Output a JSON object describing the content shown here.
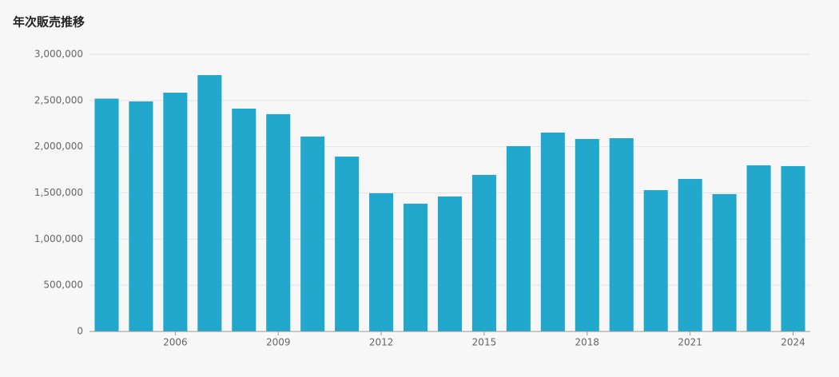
{
  "chart_data": {
    "type": "bar",
    "title": "年次販売推移",
    "categories": [
      null,
      null,
      "2006",
      null,
      null,
      "2009",
      null,
      null,
      "2012",
      null,
      null,
      "2015",
      null,
      null,
      "2018",
      null,
      null,
      "2021",
      null,
      null,
      "2024"
    ],
    "values": [
      2520000,
      2490000,
      2585000,
      2775000,
      2412000,
      2352000,
      2110000,
      1893000,
      1496000,
      1383000,
      1461000,
      1695000,
      2006000,
      2153000,
      2084000,
      2092000,
      1530000,
      1651000,
      1487000,
      1798000,
      1790000
    ],
    "color": "#21a8cc",
    "ylim": [
      0,
      3000000
    ],
    "yticks": [
      0,
      {
        "value": 500000,
        "label": "500,000"
      },
      {
        "value": 1000000,
        "label": "1,000,000"
      },
      {
        "value": 1500000,
        "label": "1,500,000"
      },
      {
        "value": 2000000,
        "label": "2,000,000"
      },
      {
        "value": 2500000,
        "label": "2,500,000"
      },
      {
        "value": 3000000,
        "label": "3,000,000"
      }
    ],
    "grid": true
  }
}
